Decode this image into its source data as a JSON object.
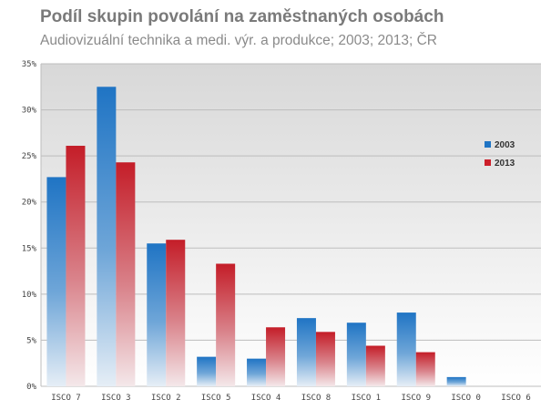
{
  "title": "Podíl skupin povolání na zaměstnaných osobách",
  "subtitle": "Audiovizuální technika a medi. výr. a produkce; 2003; 2013; ČR",
  "chart_data": {
    "type": "bar",
    "categories": [
      "ISCO 7",
      "ISCO 3",
      "ISCO 2",
      "ISCO 5",
      "ISCO 4",
      "ISCO 8",
      "ISCO 1",
      "ISCO 9",
      "ISCO 0",
      "ISCO 6"
    ],
    "series": [
      {
        "name": "2003",
        "color": "#1f74c4",
        "values": [
          22.7,
          32.5,
          15.5,
          3.2,
          3.0,
          7.4,
          6.9,
          8.0,
          1.0,
          0.0
        ]
      },
      {
        "name": "2013",
        "color": "#cc1f2a",
        "values": [
          26.1,
          24.3,
          15.9,
          13.3,
          6.4,
          5.9,
          4.4,
          3.7,
          0.0,
          0.0
        ]
      }
    ],
    "yticks": [
      "0%",
      "5%",
      "10%",
      "15%",
      "20%",
      "25%",
      "30%",
      "35%"
    ],
    "ylim": [
      0,
      35
    ],
    "grid": true,
    "legend": "right"
  }
}
